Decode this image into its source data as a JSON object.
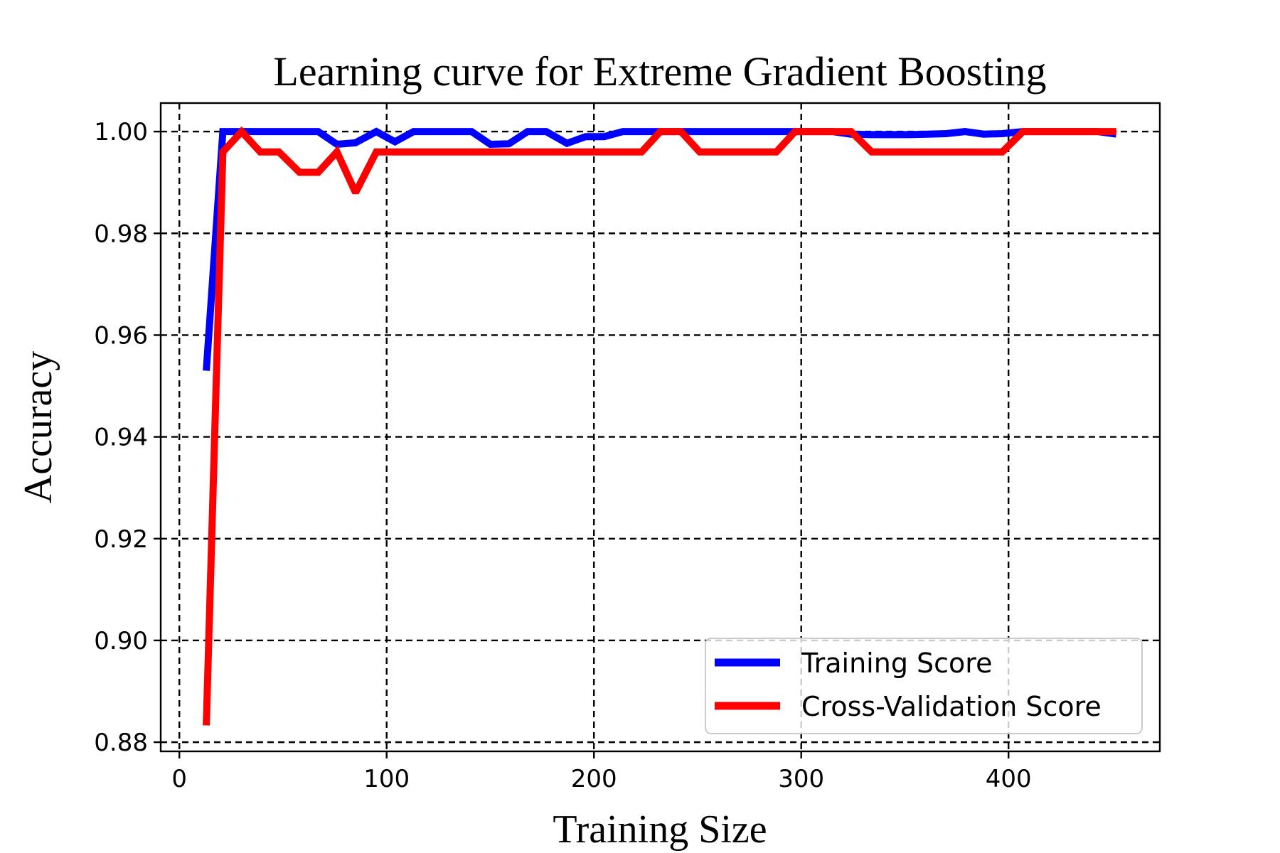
{
  "chart_data": {
    "type": "line",
    "title": "Learning curve for Extreme Gradient Boosting",
    "xlabel": "Training Size",
    "ylabel": "Accuracy",
    "xlim": [
      -9,
      473
    ],
    "ylim": [
      0.8782,
      1.0056
    ],
    "xticks": [
      0,
      100,
      200,
      300,
      400
    ],
    "xtick_labels": [
      "0",
      "100",
      "200",
      "300",
      "400"
    ],
    "yticks": [
      0.88,
      0.9,
      0.92,
      0.94,
      0.96,
      0.98,
      1.0
    ],
    "ytick_labels": [
      "0.88",
      "0.90",
      "0.92",
      "0.94",
      "0.96",
      "0.98",
      "1.00"
    ],
    "grid": true,
    "legend_position": "lower-right",
    "x": [
      13,
      21,
      30,
      39,
      48,
      58,
      67,
      76,
      85,
      95,
      104,
      113,
      122,
      132,
      141,
      150,
      159,
      168,
      177,
      187,
      196,
      205,
      214,
      223,
      232,
      242,
      251,
      260,
      269,
      278,
      288,
      297,
      306,
      315,
      324,
      334,
      343,
      352,
      361,
      370,
      379,
      388,
      397,
      407,
      416,
      425,
      434,
      443,
      452
    ],
    "series": [
      {
        "name": "Training Score",
        "color": "#0000ff",
        "values": [
          0.953,
          1.0,
          1.0,
          1.0,
          1.0,
          1.0,
          1.0,
          0.9975,
          0.9978,
          1.0,
          0.998,
          1.0,
          1.0,
          1.0,
          1.0,
          0.9975,
          0.9976,
          1.0,
          1.0,
          0.9977,
          0.999,
          0.999,
          1.0,
          1.0,
          1.0,
          1.0,
          1.0,
          1.0,
          1.0,
          1.0,
          1.0,
          1.0,
          1.0,
          1.0,
          0.9995,
          0.9994,
          0.9994,
          0.9994,
          0.9995,
          0.9996,
          1.0,
          0.9995,
          0.9996,
          1.0,
          1.0,
          1.0,
          1.0,
          1.0,
          0.9995
        ]
      },
      {
        "name": "Cross-Validation Score",
        "color": "#ff0000",
        "values": [
          0.8833,
          0.996,
          1.0,
          0.996,
          0.996,
          0.992,
          0.992,
          0.996,
          0.988,
          0.996,
          0.996,
          0.996,
          0.996,
          0.996,
          0.996,
          0.996,
          0.996,
          0.996,
          0.996,
          0.996,
          0.996,
          0.996,
          0.996,
          0.996,
          1.0,
          1.0,
          0.996,
          0.996,
          0.996,
          0.996,
          0.996,
          1.0,
          1.0,
          1.0,
          1.0,
          0.996,
          0.996,
          0.996,
          0.996,
          0.996,
          0.996,
          0.996,
          0.996,
          1.0,
          1.0,
          1.0,
          1.0,
          1.0,
          1.0
        ]
      }
    ]
  }
}
